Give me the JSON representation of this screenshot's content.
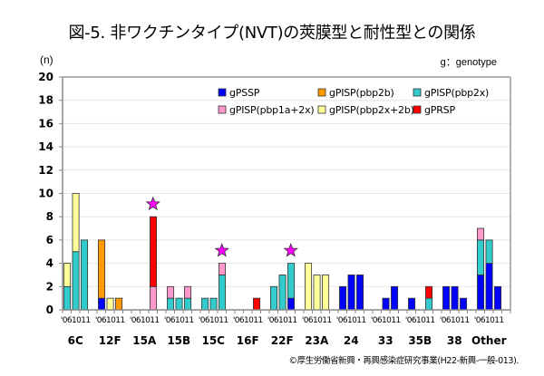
{
  "header": {
    "title": "図-5. 非ワクチンタイプ(NVT)の莢膜型と耐性型との関係",
    "unit": "(n)",
    "note": "g：genotype"
  },
  "footer": {
    "credit": "©厚生労働省新興・再興感染症研究事業(H22-新興-一般-013)."
  },
  "chart_data": {
    "type": "bar",
    "stacked": true,
    "title": "図-5. 非ワクチンタイプ(NVT)の莢膜型と耐性型との関係",
    "ylabel": "(n)",
    "xlabel": "",
    "ylim": [
      0,
      20
    ],
    "yticks": [
      0,
      2,
      4,
      6,
      8,
      10,
      12,
      14,
      16,
      18,
      20
    ],
    "grid": true,
    "legend_position": "top-right",
    "years": [
      "'06",
      "10",
      "11"
    ],
    "year_label": "'061011",
    "categories": [
      "6C",
      "12F",
      "15A",
      "15B",
      "15C",
      "16F",
      "22F",
      "23A",
      "24",
      "33",
      "35B",
      "38",
      "Other"
    ],
    "series": [
      {
        "name": "gPSSP",
        "color": "#0000ff",
        "values": [
          [
            0,
            0,
            0
          ],
          [
            1,
            0,
            0
          ],
          [
            0,
            0,
            0
          ],
          [
            0,
            0,
            0
          ],
          [
            0,
            0,
            0
          ],
          [
            0,
            0,
            0
          ],
          [
            0,
            0,
            1
          ],
          [
            0,
            0,
            0
          ],
          [
            2,
            3,
            3
          ],
          [
            0,
            1,
            2
          ],
          [
            1,
            0,
            0
          ],
          [
            2,
            2,
            1
          ],
          [
            3,
            4,
            2
          ]
        ]
      },
      {
        "name": "gPISP(pbp2x)",
        "color": "#33cccc",
        "values": [
          [
            2,
            5,
            6
          ],
          [
            0,
            0,
            0
          ],
          [
            0,
            0,
            0
          ],
          [
            1,
            1,
            1
          ],
          [
            1,
            1,
            3
          ],
          [
            0,
            0,
            0
          ],
          [
            2,
            3,
            3
          ],
          [
            0,
            0,
            0
          ],
          [
            0,
            0,
            0
          ],
          [
            0,
            0,
            0
          ],
          [
            0,
            0,
            1
          ],
          [
            0,
            0,
            0
          ],
          [
            3,
            2,
            0
          ]
        ]
      },
      {
        "name": "gPISP(pbp1a+2x)",
        "color": "#ff99cc",
        "values": [
          [
            0,
            0,
            0
          ],
          [
            0,
            0,
            0
          ],
          [
            0,
            0,
            2
          ],
          [
            1,
            0,
            1
          ],
          [
            0,
            0,
            1
          ],
          [
            0,
            0,
            0
          ],
          [
            0,
            0,
            0
          ],
          [
            0,
            0,
            0
          ],
          [
            0,
            0,
            0
          ],
          [
            0,
            0,
            0
          ],
          [
            0,
            0,
            0
          ],
          [
            0,
            0,
            0
          ],
          [
            1,
            0,
            0
          ]
        ]
      },
      {
        "name": "gPISP(pbp2b)",
        "color": "#ff9900",
        "values": [
          [
            0,
            0,
            0
          ],
          [
            5,
            0,
            1
          ],
          [
            0,
            0,
            0
          ],
          [
            0,
            0,
            0
          ],
          [
            0,
            0,
            0
          ],
          [
            0,
            0,
            0
          ],
          [
            0,
            0,
            0
          ],
          [
            0,
            0,
            0
          ],
          [
            0,
            0,
            0
          ],
          [
            0,
            0,
            0
          ],
          [
            0,
            0,
            0
          ],
          [
            0,
            0,
            0
          ],
          [
            0,
            0,
            0
          ]
        ]
      },
      {
        "name": "gPISP(pbp2x+2b)",
        "color": "#ffff99",
        "values": [
          [
            2,
            5,
            0
          ],
          [
            0,
            1,
            0
          ],
          [
            0,
            0,
            0
          ],
          [
            0,
            0,
            0
          ],
          [
            0,
            0,
            0
          ],
          [
            0,
            0,
            0
          ],
          [
            0,
            0,
            0
          ],
          [
            4,
            3,
            3
          ],
          [
            0,
            0,
            0
          ],
          [
            0,
            0,
            0
          ],
          [
            0,
            0,
            0
          ],
          [
            0,
            0,
            0
          ],
          [
            0,
            0,
            0
          ]
        ]
      },
      {
        "name": "gPRSP",
        "color": "#ff0000",
        "values": [
          [
            0,
            0,
            0
          ],
          [
            0,
            0,
            0
          ],
          [
            0,
            0,
            6
          ],
          [
            0,
            0,
            0
          ],
          [
            0,
            0,
            0
          ],
          [
            0,
            0,
            1
          ],
          [
            0,
            0,
            0
          ],
          [
            0,
            0,
            0
          ],
          [
            0,
            0,
            0
          ],
          [
            0,
            0,
            0
          ],
          [
            0,
            0,
            1
          ],
          [
            0,
            0,
            0
          ],
          [
            0,
            0,
            0
          ]
        ]
      }
    ],
    "legend_order": [
      "gPSSP",
      "gPISP(pbp2b)",
      "gPISP(pbp2x)",
      "gPISP(pbp1a+2x)",
      "gPISP(pbp2x+2b)",
      "gPRSP"
    ],
    "annotations": [
      {
        "type": "star",
        "category": "15A",
        "year_index": 2,
        "color": "#ff00ff"
      },
      {
        "type": "star",
        "category": "15C",
        "year_index": 2,
        "color": "#ff00ff"
      },
      {
        "type": "star",
        "category": "22F",
        "year_index": 2,
        "color": "#ff00ff"
      }
    ]
  }
}
